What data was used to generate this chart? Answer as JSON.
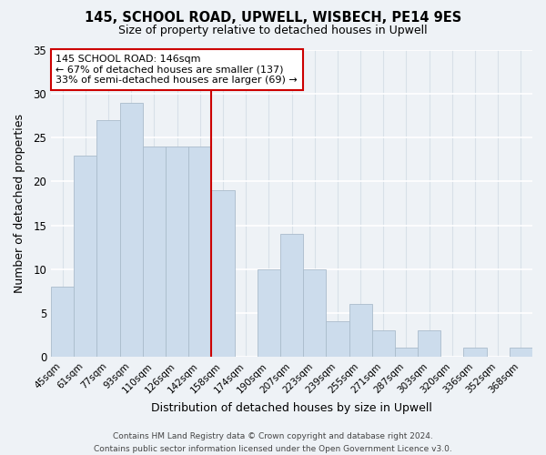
{
  "title": "145, SCHOOL ROAD, UPWELL, WISBECH, PE14 9ES",
  "subtitle": "Size of property relative to detached houses in Upwell",
  "xlabel": "Distribution of detached houses by size in Upwell",
  "ylabel": "Number of detached properties",
  "bar_labels": [
    "45sqm",
    "61sqm",
    "77sqm",
    "93sqm",
    "110sqm",
    "126sqm",
    "142sqm",
    "158sqm",
    "174sqm",
    "190sqm",
    "207sqm",
    "223sqm",
    "239sqm",
    "255sqm",
    "271sqm",
    "287sqm",
    "303sqm",
    "320sqm",
    "336sqm",
    "352sqm",
    "368sqm"
  ],
  "bar_values": [
    8,
    23,
    27,
    29,
    24,
    24,
    24,
    19,
    0,
    10,
    14,
    10,
    4,
    6,
    3,
    1,
    3,
    0,
    1,
    0,
    1
  ],
  "bar_color": "#ccdcec",
  "bar_edgecolor": "#aabccc",
  "highlight_line_color": "#cc0000",
  "ylim": [
    0,
    35
  ],
  "yticks": [
    0,
    5,
    10,
    15,
    20,
    25,
    30,
    35
  ],
  "annotation_box_text": "145 SCHOOL ROAD: 146sqm\n← 67% of detached houses are smaller (137)\n33% of semi-detached houses are larger (69) →",
  "annotation_box_color": "#cc0000",
  "footer_line1": "Contains HM Land Registry data © Crown copyright and database right 2024.",
  "footer_line2": "Contains public sector information licensed under the Open Government Licence v3.0.",
  "background_color": "#eef2f6",
  "plot_background": "#eef2f6",
  "grid_color": "#d8e0e8"
}
